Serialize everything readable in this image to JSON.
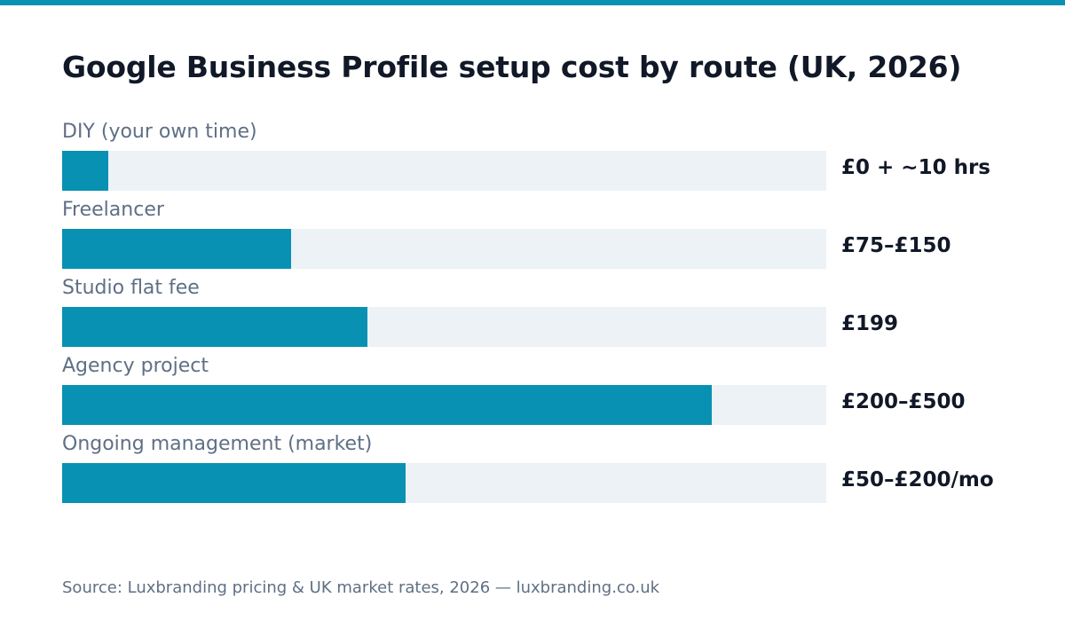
{
  "colors": {
    "accent": "#0891b2",
    "track": "#edf2f7",
    "title_text": "#111827",
    "label_text": "#5f6f85"
  },
  "chart_data": {
    "type": "bar",
    "orientation": "horizontal",
    "title": "Google Business Profile setup cost by route (UK, 2026)",
    "xlabel": "",
    "ylabel": "",
    "categories": [
      "DIY (your own time)",
      "Freelancer",
      "Studio flat fee",
      "Agency project",
      "Ongoing management (market)"
    ],
    "values": [
      0.06,
      0.3,
      0.4,
      0.85,
      0.45
    ],
    "value_labels": [
      "£0 + ~10 hrs",
      "£75–£150",
      "£199",
      "£200–£500",
      "£50–£200/mo"
    ],
    "xlim": [
      0,
      1
    ],
    "grid": false,
    "legend": "none"
  },
  "source": "Source: Luxbranding pricing & UK market rates, 2026 — luxbranding.co.uk"
}
